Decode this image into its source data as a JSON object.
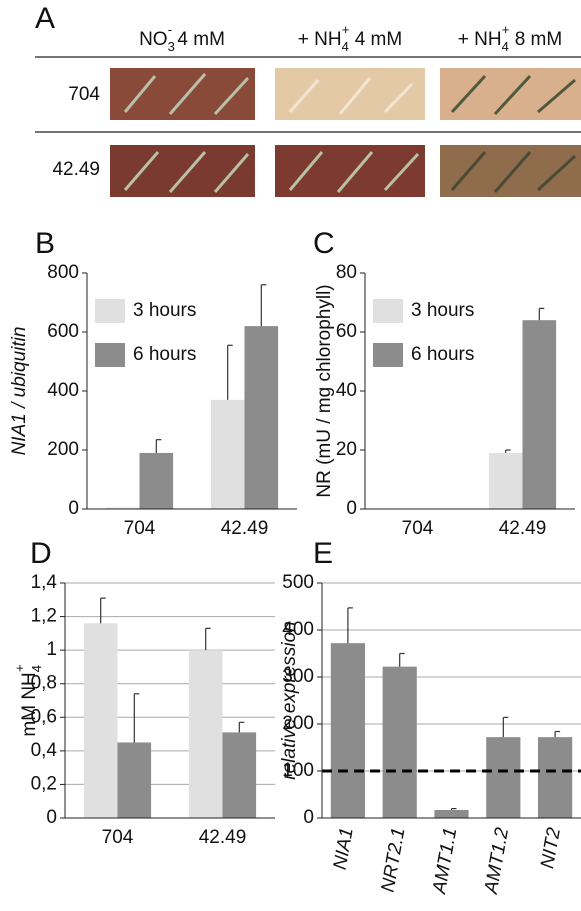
{
  "panel_a": {
    "label": "A",
    "columns": [
      {
        "main": "NO",
        "sub": "3",
        "sup": "-",
        "after": " 4 mM"
      },
      {
        "main": "+ NH",
        "sub": "4",
        "sup": "+",
        "after": " 4 mM"
      },
      {
        "main": "+ NH",
        "sub": "4",
        "sup": "+",
        "after": " 8 mM"
      }
    ],
    "rows": [
      "704",
      "42.49"
    ]
  },
  "chart_data": [
    {
      "type": "bar",
      "label": "B",
      "ylabel": {
        "text": "NIA1 / ubiquitin",
        "italic": true
      },
      "categories": [
        "704",
        "42.49"
      ],
      "series": [
        {
          "name": "3 hours",
          "color": "#e0e0e0",
          "values": [
            5,
            370
          ],
          "errors": [
            null,
            185
          ]
        },
        {
          "name": "6 hours",
          "color": "#8c8c8c",
          "values": [
            190,
            620
          ],
          "errors": [
            45,
            140
          ]
        }
      ],
      "ylim": [
        0,
        800
      ],
      "yticks": [
        0,
        200,
        400,
        600,
        800
      ],
      "grid": false,
      "legend": "upper left"
    },
    {
      "type": "bar",
      "label": "C",
      "ylabel": {
        "text": "NR (mU / mg chlorophyll)",
        "italic": false
      },
      "categories": [
        "704",
        "42.49"
      ],
      "series": [
        {
          "name": "3 hours",
          "color": "#e0e0e0",
          "values": [
            0,
            19
          ],
          "errors": [
            null,
            1
          ]
        },
        {
          "name": "6 hours",
          "color": "#8c8c8c",
          "values": [
            0,
            64
          ],
          "errors": [
            null,
            4
          ]
        }
      ],
      "ylim": [
        0,
        80
      ],
      "yticks": [
        0,
        20,
        40,
        60,
        80
      ],
      "grid": false,
      "legend": "upper left"
    },
    {
      "type": "bar",
      "label": "D",
      "ylabel": {
        "text": "mM NH",
        "sub": "4",
        "sup": "+",
        "italic": false
      },
      "categories": [
        "704",
        "42.49"
      ],
      "series": [
        {
          "color": "#e0e0e0",
          "values": [
            1.16,
            1.0
          ],
          "errors": [
            0.15,
            0.13
          ]
        },
        {
          "color": "#8c8c8c",
          "values": [
            0.45,
            0.51
          ],
          "errors": [
            0.29,
            0.06
          ]
        }
      ],
      "ylim": [
        0,
        1.4
      ],
      "yticks": [
        0,
        {
          "value": 0.2,
          "label": "0,2"
        },
        {
          "value": 0.4,
          "label": "0,4"
        },
        {
          "value": 0.6,
          "label": "0,6"
        },
        {
          "value": 0.8,
          "label": "0,8"
        },
        1,
        {
          "value": 1.2,
          "label": "1,2"
        },
        {
          "value": 1.4,
          "label": "1,4"
        }
      ],
      "grid": true
    },
    {
      "type": "bar",
      "label": "E",
      "ylabel": {
        "text": "relative expression",
        "italic": true
      },
      "categories": [
        "NIA1",
        "NRT2.1",
        "AMT1.1",
        "AMT1.2",
        "NIT2"
      ],
      "rotate_categories": true,
      "series": [
        {
          "color": "#8c8c8c",
          "values": [
            372,
            322,
            17,
            172,
            172
          ],
          "errors": [
            75,
            28,
            3,
            42,
            12
          ]
        }
      ],
      "ylim": [
        0,
        500
      ],
      "yticks": [
        0,
        100,
        200,
        300,
        400,
        500
      ],
      "grid": true,
      "reference_line": 100
    }
  ]
}
